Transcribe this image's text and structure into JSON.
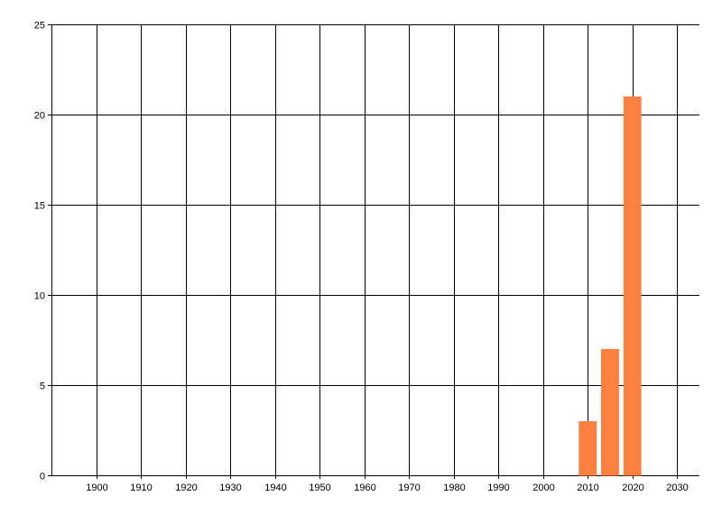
{
  "chart_data": {
    "type": "bar",
    "title": "",
    "xlabel": "",
    "ylabel": "",
    "xlim": [
      1890,
      2035
    ],
    "ylim": [
      0,
      25
    ],
    "x_ticks": [
      1900,
      1910,
      1920,
      1930,
      1940,
      1950,
      1960,
      1970,
      1980,
      1990,
      2000,
      2010,
      2020,
      2030
    ],
    "y_ticks": [
      0,
      5,
      10,
      15,
      20,
      25
    ],
    "grid": true,
    "bar_width_years": 4,
    "bar_color": "#ff8040",
    "series": [
      {
        "x": [
          2010,
          2015,
          2020
        ],
        "values": [
          3,
          7,
          21
        ]
      }
    ]
  }
}
